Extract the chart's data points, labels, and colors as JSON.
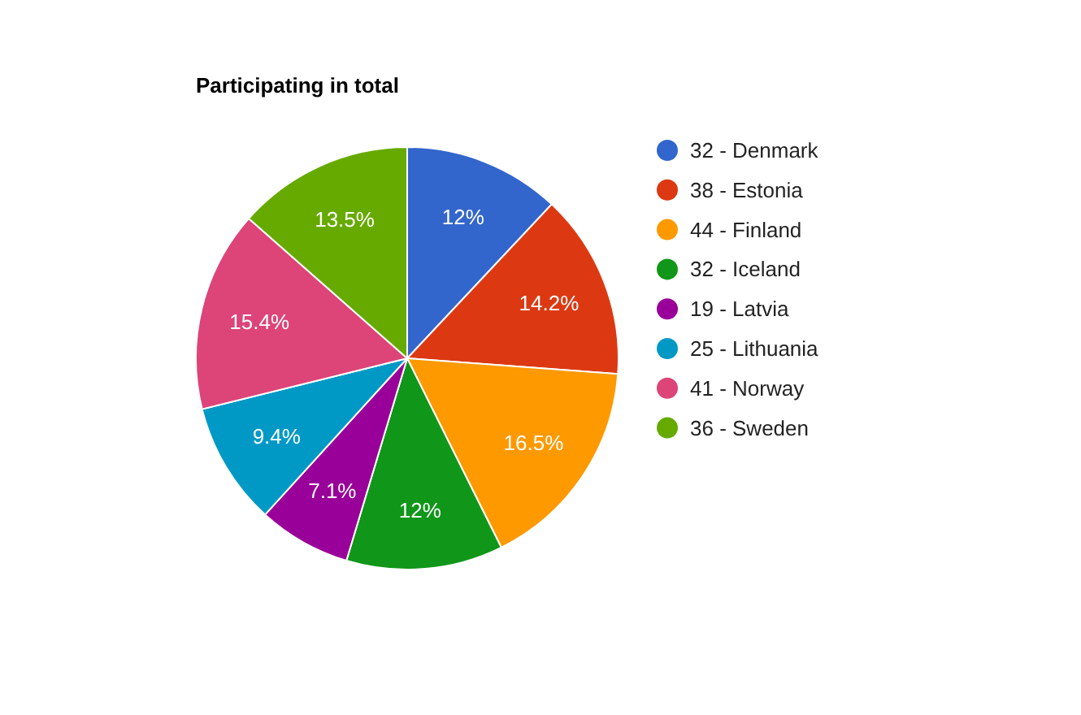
{
  "chart_data": {
    "type": "pie",
    "title": "Participating in total",
    "categories": [
      "32 - Denmark",
      "38 - Estonia",
      "44 - Finland",
      "32 - Iceland",
      "19 - Latvia",
      "25 - Lithuania",
      "41 - Norway",
      "36 - Sweden"
    ],
    "values": [
      12,
      14.2,
      16.5,
      12,
      7.1,
      9.4,
      15.4,
      13.5
    ],
    "colors": [
      "#3366cc",
      "#dc3912",
      "#ff9900",
      "#109618",
      "#990099",
      "#0099c6",
      "#dd4477",
      "#66aa00"
    ],
    "value_labels": [
      "12%",
      "14.2%",
      "16.5%",
      "12%",
      "7.1%",
      "9.4%",
      "15.4%",
      "13.5%"
    ],
    "legend": "right"
  }
}
